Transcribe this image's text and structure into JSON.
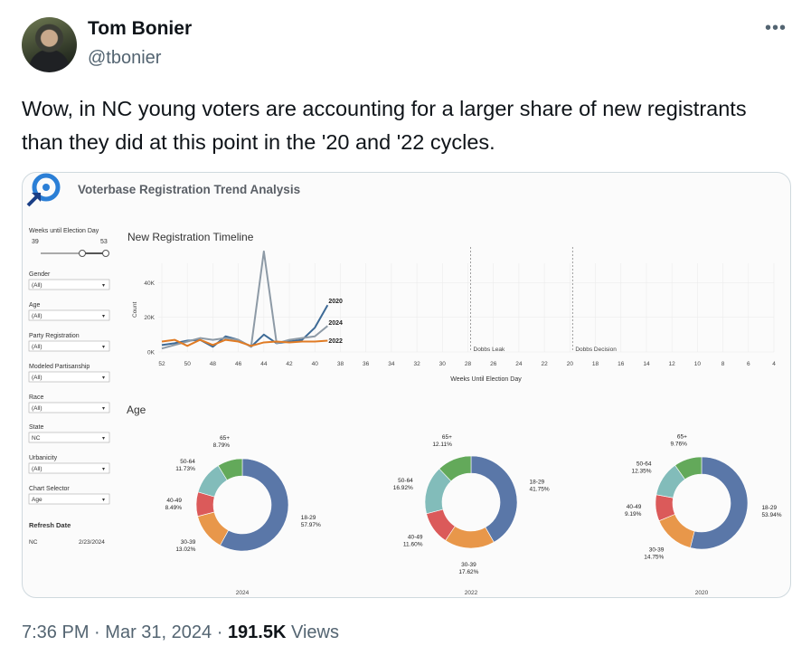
{
  "tweet": {
    "author_name": "Tom Bonier",
    "author_handle": "@tbonier",
    "more_icon": "more-icon",
    "text": "Wow, in NC young voters are accounting for a larger share of new registrants than they did at this point in the '20 and '22 cycles.",
    "time": "7:36 PM",
    "separator1": "·",
    "date": "Mar 31, 2024",
    "separator2": "·",
    "views_count": "191.5K",
    "views_label": "Views"
  },
  "dashboard": {
    "title": "Voterbase Registration Trend Analysis",
    "filters": {
      "weeks_label": "Weeks until Election Day",
      "weeks_min": "39",
      "weeks_max": "53",
      "gender_label": "Gender",
      "gender_value": "(All)",
      "age_label": "Age",
      "age_value": "(All)",
      "party_label": "Party Registration",
      "party_value": "(All)",
      "partisanship_label": "Modeled Partisanship",
      "partisanship_value": "(All)",
      "race_label": "Race",
      "race_value": "(All)",
      "state_label": "State",
      "state_value": "NC",
      "urbanicity_label": "Urbanicity",
      "urbanicity_value": "(All)",
      "chart_selector_label": "Chart Selector",
      "chart_selector_value": "Age",
      "refresh_label": "Refresh Date",
      "refresh_state": "NC",
      "refresh_date": "2/23/2024"
    },
    "age_heading": "Age"
  },
  "chart_data": [
    {
      "type": "line",
      "title": "New Registration Timeline",
      "xlabel": "Weeks Until Election Day",
      "ylabel": "Count",
      "x_ticks": [
        52,
        50,
        48,
        46,
        44,
        42,
        40,
        38,
        36,
        34,
        32,
        30,
        28,
        26,
        24,
        22,
        20,
        18,
        16,
        14,
        12,
        10,
        8,
        6,
        4
      ],
      "y_ticks": [
        "0K",
        "20K",
        "40K"
      ],
      "xlim": [
        52,
        4
      ],
      "ylim": [
        0,
        48000
      ],
      "x": [
        52,
        51,
        50,
        49,
        48,
        47,
        46,
        45,
        44,
        43,
        42,
        41,
        40,
        39
      ],
      "series": [
        {
          "name": "2020",
          "color": "#3d6a96",
          "values": [
            4000,
            5000,
            6500,
            7000,
            3000,
            9000,
            7000,
            3000,
            10000,
            5000,
            6000,
            7000,
            14000,
            27000
          ]
        },
        {
          "name": "2024",
          "color": "#8d9aa6",
          "values": [
            2000,
            4000,
            6000,
            8000,
            7000,
            8000,
            7000,
            3000,
            58000,
            5000,
            7000,
            8000,
            9000,
            15000
          ]
        },
        {
          "name": "2022",
          "color": "#e07b24",
          "values": [
            6000,
            7000,
            3500,
            7000,
            4000,
            7000,
            6000,
            3500,
            5500,
            6000,
            5500,
            6000,
            6000,
            6500
          ]
        }
      ],
      "annotations": [
        {
          "label": "Dobbs Leak",
          "x": 28
        },
        {
          "label": "Dobbs Decision",
          "x": 20
        }
      ]
    },
    {
      "type": "pie",
      "title": "2024",
      "categories": [
        "18-29",
        "30-39",
        "40-49",
        "50-64",
        "65+"
      ],
      "values": [
        57.97,
        13.02,
        8.49,
        11.73,
        8.79
      ],
      "labels": [
        "57.97%",
        "13.02%",
        "8.49%",
        "11.73%",
        "8.79%"
      ]
    },
    {
      "type": "pie",
      "title": "2022",
      "categories": [
        "18-29",
        "30-39",
        "40-49",
        "50-64",
        "65+"
      ],
      "values": [
        41.75,
        17.62,
        11.6,
        16.92,
        12.11
      ],
      "labels": [
        "41.75%",
        "17.62%",
        "11.60%",
        "16.92%",
        "12.11%"
      ]
    },
    {
      "type": "pie",
      "title": "2020",
      "categories": [
        "18-29",
        "30-39",
        "40-49",
        "50-64",
        "65+"
      ],
      "values": [
        53.94,
        14.75,
        9.19,
        12.35,
        9.76
      ],
      "labels": [
        "53.94%",
        "14.75%",
        "9.19%",
        "12.35%",
        "9.76%"
      ]
    }
  ],
  "colors": {
    "age_18_29": "#5a77a8",
    "age_30_39": "#e8974a",
    "age_40_49": "#db5a5a",
    "age_50_64": "#82bcba",
    "age_65_plus": "#63a95a"
  }
}
